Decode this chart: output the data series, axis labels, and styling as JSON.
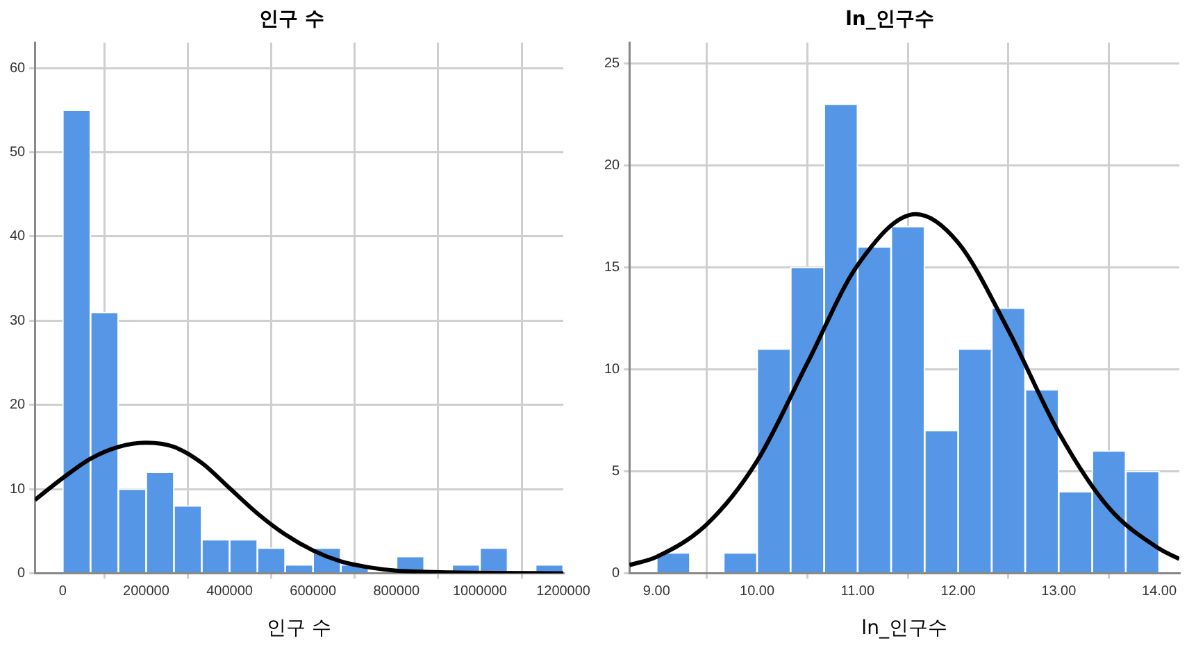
{
  "chart_data": [
    {
      "type": "histogram",
      "title": "인구 수",
      "xlabel": "인구 수",
      "grid": true,
      "marker": "none",
      "xlim": [
        -66667,
        1200000
      ],
      "xticks": [
        0,
        200000,
        400000,
        600000,
        800000,
        1000000,
        1200000
      ],
      "ylim": [
        0,
        63
      ],
      "yticks": [
        0,
        10,
        20,
        30,
        40,
        50,
        60
      ],
      "series": [
        {
          "color": "#5596e6",
          "bins": [
            0,
            66667,
            133333,
            200000,
            266667,
            333333,
            400000,
            466667,
            533333,
            600000,
            666667,
            733333,
            800000,
            866667,
            933333,
            1000000,
            1066667,
            1133333,
            1200000
          ],
          "values": [
            55,
            31,
            10,
            12,
            8,
            4,
            4,
            3,
            1,
            3,
            1,
            0,
            2,
            0,
            1,
            3,
            0,
            1
          ]
        },
        {
          "type": "line",
          "color": "#000000",
          "x": [
            -66667,
            0,
            66667,
            133333,
            200000,
            266667,
            333333,
            400000,
            466667,
            533333,
            600000,
            666667,
            733333,
            800000,
            933333,
            1200000
          ],
          "values": [
            8.7,
            11.3,
            13.6,
            15.0,
            15.5,
            15.0,
            13.1,
            10.1,
            7.1,
            4.6,
            2.7,
            1.4,
            0.7,
            0.3,
            0.1,
            0
          ]
        }
      ]
    },
    {
      "type": "histogram",
      "title": "ln_인구수",
      "xlabel": "ln_인구수",
      "grid": true,
      "marker": "none",
      "xlim": [
        8.73,
        14.2
      ],
      "xticks": [
        {
          "value": 9,
          "label": "9.00"
        },
        {
          "value": 10,
          "label": "10.00"
        },
        {
          "value": 11,
          "label": "11.00"
        },
        {
          "value": 12,
          "label": "12.00"
        },
        {
          "value": 13,
          "label": "13.00"
        },
        {
          "value": 14,
          "label": "14.00"
        }
      ],
      "ylim": [
        0,
        26
      ],
      "yticks": [
        0,
        5,
        10,
        15,
        20,
        25
      ],
      "series": [
        {
          "color": "#5596e6",
          "bins": [
            9,
            9.333,
            9.667,
            10,
            10.333,
            10.667,
            11,
            11.333,
            11.667,
            12,
            12.333,
            12.667,
            13,
            13.333,
            13.667,
            14
          ],
          "values": [
            1,
            0,
            1,
            11,
            15,
            23,
            16,
            17,
            7,
            11,
            13,
            9,
            4,
            6,
            5
          ]
        },
        {
          "type": "line",
          "color": "#000000",
          "x": [
            8.73,
            9,
            9.5,
            10,
            10.5,
            11,
            11.58,
            12,
            12.5,
            13,
            13.5,
            14,
            14.2
          ],
          "values": [
            0.4,
            0.8,
            2.4,
            5.5,
            10.3,
            15.1,
            17.6,
            16.2,
            11.9,
            6.9,
            3.2,
            1.2,
            0.7
          ]
        }
      ]
    }
  ]
}
